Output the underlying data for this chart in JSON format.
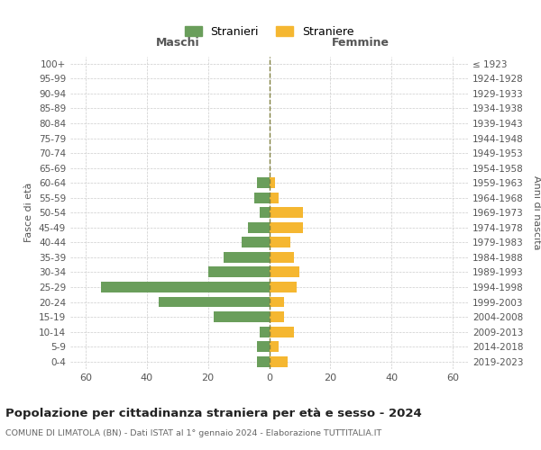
{
  "age_groups": [
    "100+",
    "95-99",
    "90-94",
    "85-89",
    "80-84",
    "75-79",
    "70-74",
    "65-69",
    "60-64",
    "55-59",
    "50-54",
    "45-49",
    "40-44",
    "35-39",
    "30-34",
    "25-29",
    "20-24",
    "15-19",
    "10-14",
    "5-9",
    "0-4"
  ],
  "birth_years": [
    "≤ 1923",
    "1924-1928",
    "1929-1933",
    "1934-1938",
    "1939-1943",
    "1944-1948",
    "1949-1953",
    "1954-1958",
    "1959-1963",
    "1964-1968",
    "1969-1973",
    "1974-1978",
    "1979-1983",
    "1984-1988",
    "1989-1993",
    "1994-1998",
    "1999-2003",
    "2004-2008",
    "2009-2013",
    "2014-2018",
    "2019-2023"
  ],
  "maschi": [
    0,
    0,
    0,
    0,
    0,
    0,
    0,
    0,
    4,
    5,
    3,
    7,
    9,
    15,
    20,
    55,
    36,
    18,
    3,
    4,
    4
  ],
  "femmine": [
    0,
    0,
    0,
    0,
    0,
    0,
    0,
    0,
    2,
    3,
    11,
    11,
    7,
    8,
    10,
    9,
    5,
    5,
    8,
    3,
    6
  ],
  "male_color": "#6a9e5b",
  "female_color": "#f5b731",
  "center_line_color": "#808040",
  "grid_color": "#cccccc",
  "bg_color": "#ffffff",
  "title": "Popolazione per cittadinanza straniera per età e sesso - 2024",
  "subtitle": "COMUNE DI LIMATOLA (BN) - Dati ISTAT al 1° gennaio 2024 - Elaborazione TUTTITALIA.IT",
  "xlabel_left": "Maschi",
  "xlabel_right": "Femmine",
  "ylabel_left": "Fasce di età",
  "ylabel_right": "Anni di nascita",
  "legend_male": "Stranieri",
  "legend_female": "Straniere",
  "xlim": 65,
  "xticks_pos": [
    -60,
    -40,
    -20,
    0,
    20,
    40,
    60
  ],
  "xticks_lab": [
    "60",
    "40",
    "20",
    "0",
    "20",
    "40",
    "60"
  ]
}
